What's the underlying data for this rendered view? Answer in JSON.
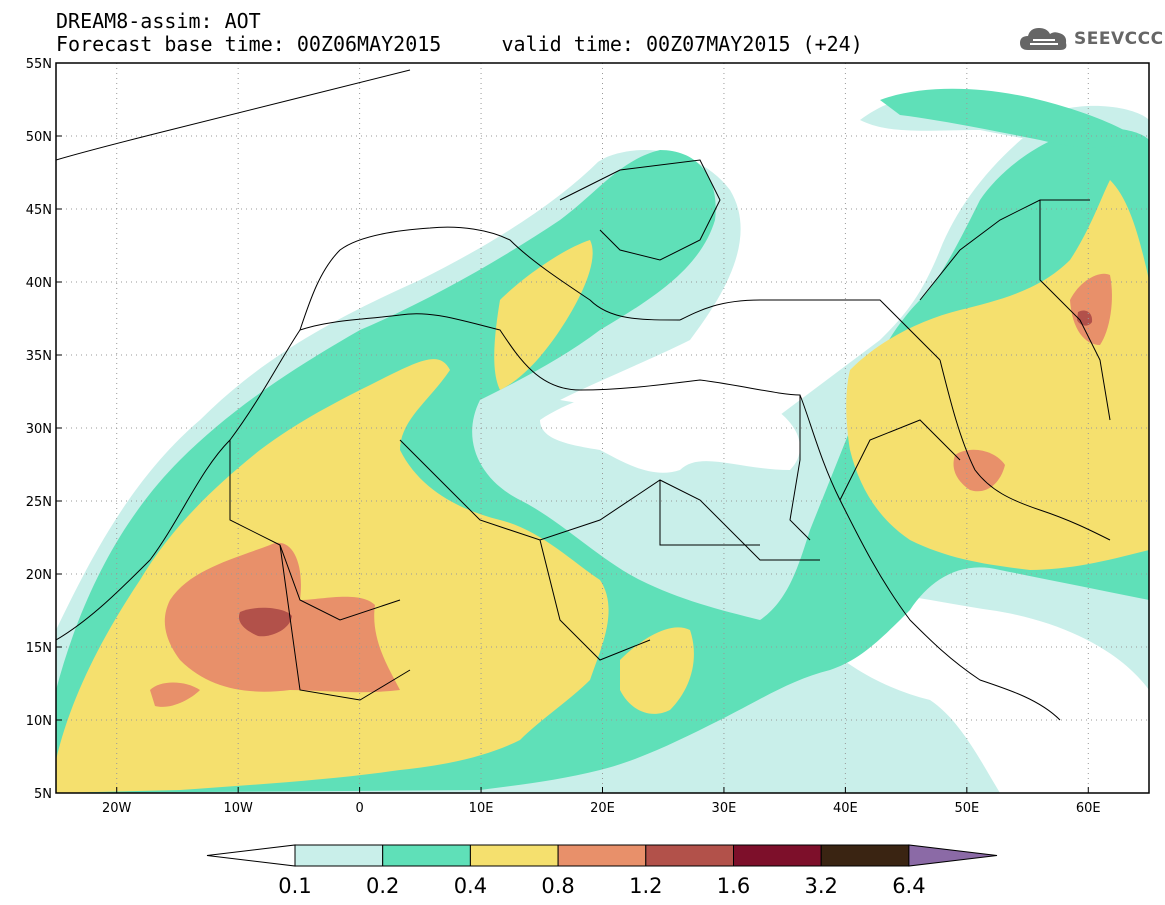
{
  "header": {
    "line1": "DREAM8-assim: AOT",
    "line2": "Forecast base time: 00Z06MAY2015     valid time: 00Z07MAY2015 (+24)"
  },
  "brand": {
    "name": "SEEVCCC",
    "icon": "cloud-logo-icon"
  },
  "map": {
    "variable": "AOT",
    "lon_range": [
      -25,
      65
    ],
    "lat_range": [
      5,
      55
    ],
    "lat_labels": [
      "55N",
      "50N",
      "45N",
      "40N",
      "35N",
      "30N",
      "25N",
      "20N",
      "15N",
      "10N",
      "5N"
    ],
    "lon_labels": [
      "20W",
      "10W",
      "0",
      "10E",
      "20E",
      "30E",
      "40E",
      "50E",
      "60E"
    ],
    "gridlines": "dotted"
  },
  "colorbar": {
    "labels": [
      "0.1",
      "0.2",
      "0.4",
      "0.8",
      "1.2",
      "1.6",
      "3.2",
      "6.4"
    ],
    "colors": [
      "#ffffff",
      "#c9efea",
      "#5fe0b8",
      "#f5e06e",
      "#e8906a",
      "#b2514a",
      "#7d0f2a",
      "#3a2412",
      "#8b6aa6"
    ]
  },
  "colors": {
    "aot_0_1": "#c9efea",
    "aot_0_2": "#5fe0b8",
    "aot_0_4": "#f5e06e",
    "aot_0_8": "#e8906a",
    "aot_1_2": "#b2514a"
  }
}
